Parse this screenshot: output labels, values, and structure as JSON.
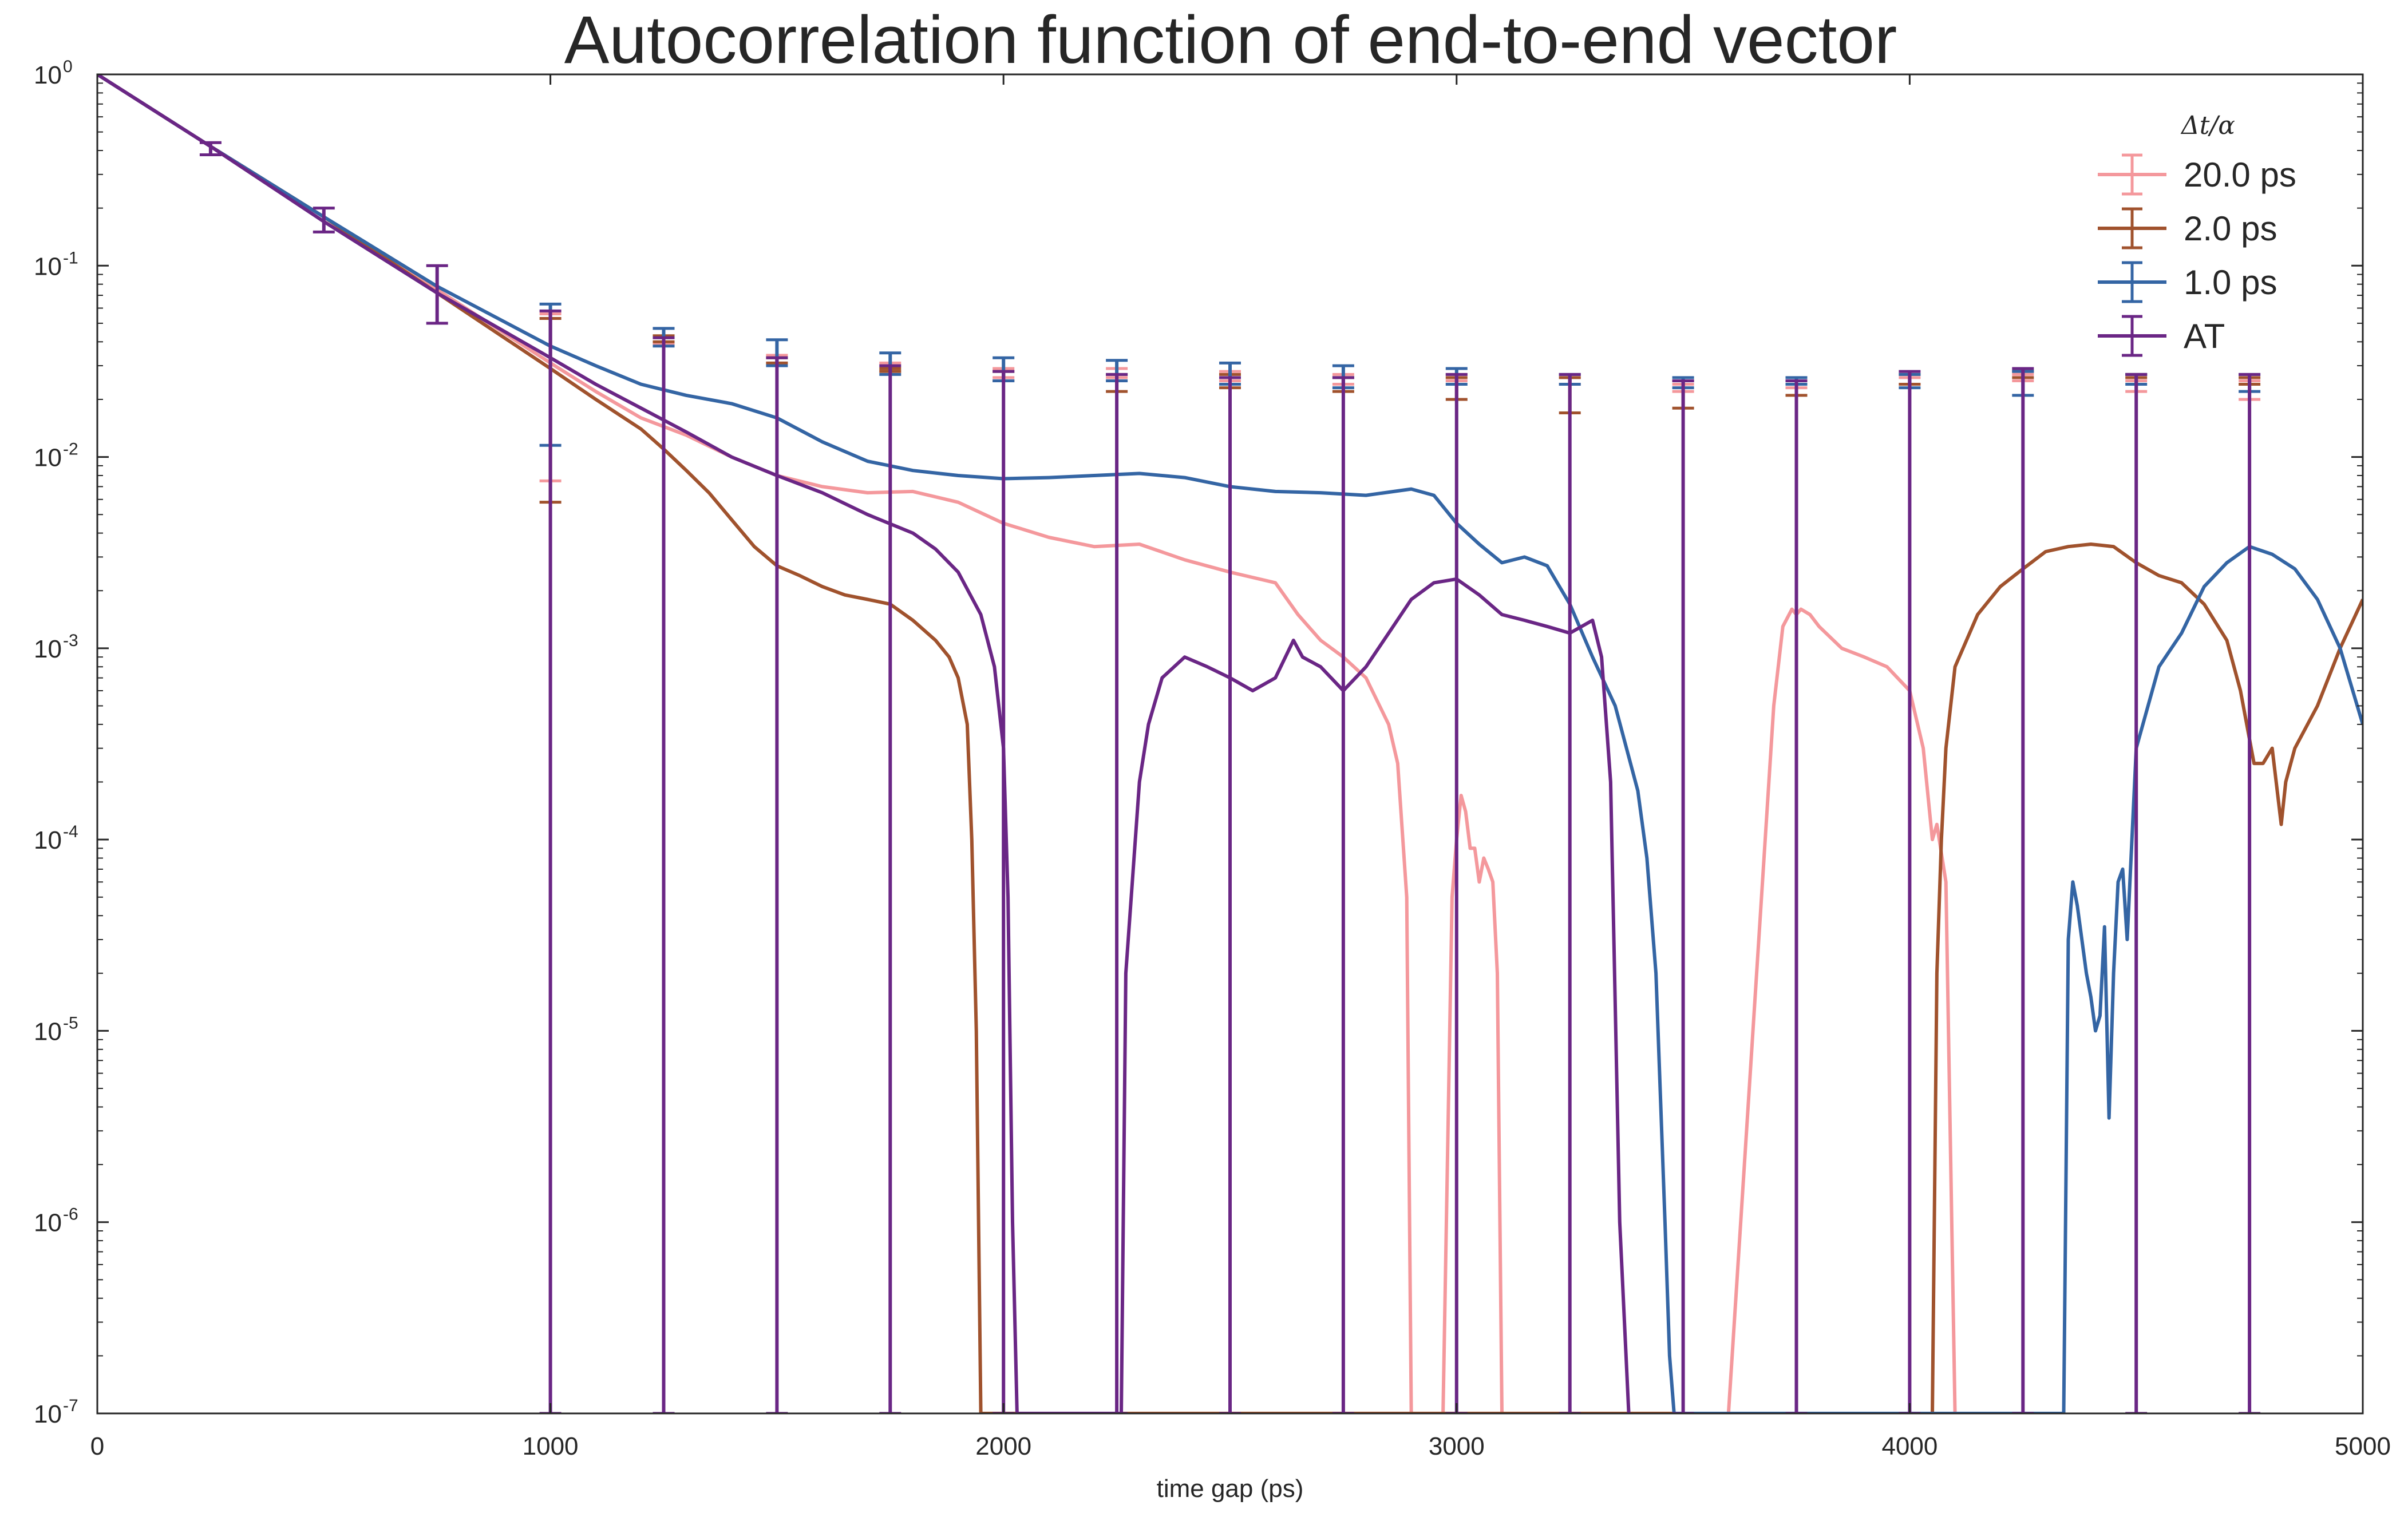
{
  "chart_data": {
    "type": "line",
    "title": "Autocorrelation function of end-to-end vector",
    "xlabel": "time gap (ps)",
    "ylabel": "",
    "xlim": [
      0,
      5000
    ],
    "ylim": [
      1e-07,
      1
    ],
    "yscale": "log",
    "grid": false,
    "legend_position": "top-right",
    "legend_title": "Δt/α",
    "x_ticks": [
      0,
      1000,
      2000,
      3000,
      4000,
      5000
    ],
    "x_tick_labels": [
      "0",
      "1000",
      "2000",
      "3000",
      "4000",
      "5000"
    ],
    "y_ticks": [
      {
        "value": 1,
        "base": "10",
        "exp": "0"
      },
      {
        "value": 0.1,
        "base": "10",
        "exp": "-1"
      },
      {
        "value": 0.01,
        "base": "10",
        "exp": "-2"
      },
      {
        "value": 0.001,
        "base": "10",
        "exp": "-3"
      },
      {
        "value": 0.0001,
        "base": "10",
        "exp": "-4"
      },
      {
        "value": 1e-05,
        "base": "10",
        "exp": "-5"
      },
      {
        "value": 1e-06,
        "base": "10",
        "exp": "-6"
      },
      {
        "value": 1e-07,
        "base": "10",
        "exp": "-7"
      }
    ],
    "series": [
      {
        "name": "20.0 ps",
        "color": "#f4989c",
        "x": [
          0,
          250,
          500,
          750,
          1000,
          1100,
          1200,
          1300,
          1400,
          1500,
          1600,
          1700,
          1800,
          1900,
          2000,
          2100,
          2200,
          2300,
          2400,
          2500,
          2600,
          2650,
          2700,
          2750,
          2800,
          2850,
          2870,
          2890,
          2900,
          2970,
          2990,
          3000,
          3010,
          3020,
          3030,
          3040,
          3050,
          3060,
          3070,
          3080,
          3090,
          3100,
          3110,
          3600,
          3700,
          3720,
          3740,
          3750,
          3760,
          3780,
          3800,
          3850,
          3900,
          3950,
          4000,
          4030,
          4050,
          4060,
          4080,
          4100,
          4110,
          4120,
          4130
        ],
        "y": [
          1,
          0.42,
          0.18,
          0.075,
          0.031,
          0.022,
          0.016,
          0.013,
          0.01,
          0.008,
          0.007,
          0.0065,
          0.0066,
          0.0058,
          0.0045,
          0.0038,
          0.0034,
          0.0035,
          0.0029,
          0.0025,
          0.0022,
          0.0015,
          0.0011,
          0.0009,
          0.0007,
          0.0004,
          0.00025,
          5e-05,
          1e-07,
          1e-07,
          5e-05,
          0.0001,
          0.00017,
          0.00014,
          9e-05,
          9e-05,
          6e-05,
          8e-05,
          7e-05,
          6e-05,
          2e-05,
          1e-07,
          1e-07,
          1e-07,
          0.0005,
          0.0013,
          0.0016,
          0.0015,
          0.0016,
          0.0015,
          0.0013,
          0.001,
          0.0009,
          0.0008,
          0.0006,
          0.0003,
          0.0001,
          0.00012,
          6e-05,
          1e-07,
          1e-07,
          1e-07,
          1e-07
        ],
        "error_x": [
          1000,
          1250,
          1500,
          1750,
          2000,
          2250,
          2500,
          2750,
          3000,
          3250,
          3500,
          3750,
          4000,
          4250,
          4500,
          4750
        ],
        "error_lower": [
          0.0075,
          0.039,
          0.031,
          0.028,
          0.026,
          0.026,
          0.025,
          0.024,
          0.025,
          0.024,
          0.022,
          0.023,
          0.024,
          0.025,
          0.022,
          0.02
        ],
        "error_upper": [
          0.056,
          0.042,
          0.034,
          0.031,
          0.029,
          0.029,
          0.028,
          0.027,
          0.027,
          0.026,
          0.024,
          0.025,
          0.026,
          0.027,
          0.025,
          0.025
        ]
      },
      {
        "name": "2.0 ps",
        "color": "#a0522d",
        "x": [
          0,
          250,
          500,
          750,
          1000,
          1100,
          1200,
          1250,
          1300,
          1350,
          1400,
          1450,
          1500,
          1550,
          1600,
          1650,
          1700,
          1750,
          1800,
          1850,
          1880,
          1900,
          1920,
          1930,
          1940,
          1950,
          4050,
          4060,
          4070,
          4080,
          4100,
          4150,
          4200,
          4250,
          4300,
          4350,
          4400,
          4450,
          4500,
          4550,
          4600,
          4650,
          4700,
          4730,
          4760,
          4780,
          4800,
          4820,
          4830,
          4850,
          4900,
          4950,
          5000
        ],
        "y": [
          1,
          0.42,
          0.18,
          0.072,
          0.029,
          0.02,
          0.014,
          0.011,
          0.0085,
          0.0065,
          0.0047,
          0.0034,
          0.0027,
          0.0024,
          0.0021,
          0.0019,
          0.0018,
          0.0017,
          0.0014,
          0.0011,
          0.0009,
          0.0007,
          0.0004,
          0.0001,
          1e-05,
          1e-07,
          1e-07,
          2e-05,
          0.0001,
          0.0003,
          0.0008,
          0.0015,
          0.0021,
          0.0026,
          0.0032,
          0.0034,
          0.0035,
          0.0034,
          0.0028,
          0.0024,
          0.0022,
          0.0017,
          0.0011,
          0.0006,
          0.00025,
          0.00025,
          0.0003,
          0.00012,
          0.0002,
          0.0003,
          0.0005,
          0.001,
          0.0018
        ],
        "error_x": [
          1000,
          1250,
          1500,
          1750,
          2000,
          2250,
          2500,
          2750,
          3000,
          3250,
          3500,
          3750,
          4000,
          4250,
          4500,
          4750
        ],
        "error_lower": [
          0.0058,
          0.04,
          0.031,
          0.028,
          0.025,
          0.022,
          0.023,
          0.022,
          0.02,
          0.017,
          0.018,
          0.021,
          0.024,
          0.026,
          0.026,
          0.024
        ],
        "error_upper": [
          0.053,
          0.043,
          0.033,
          0.029,
          0.028,
          0.027,
          0.027,
          0.026,
          0.026,
          0.026,
          0.025,
          0.025,
          0.027,
          0.028,
          0.027,
          0.026
        ]
      },
      {
        "name": "1.0 ps",
        "color": "#3465a4",
        "x": [
          0,
          250,
          500,
          750,
          1000,
          1100,
          1200,
          1300,
          1400,
          1500,
          1600,
          1700,
          1800,
          1900,
          2000,
          2100,
          2200,
          2300,
          2400,
          2500,
          2600,
          2700,
          2800,
          2900,
          2950,
          3000,
          3050,
          3100,
          3150,
          3200,
          3250,
          3300,
          3350,
          3400,
          3420,
          3440,
          3460,
          3470,
          3480,
          4340,
          4350,
          4360,
          4370,
          4380,
          4390,
          4400,
          4410,
          4420,
          4430,
          4440,
          4450,
          4460,
          4470,
          4480,
          4500,
          4550,
          4600,
          4650,
          4700,
          4750,
          4800,
          4850,
          4900,
          4950,
          5000
        ],
        "y": [
          1,
          0.42,
          0.18,
          0.078,
          0.038,
          0.03,
          0.024,
          0.021,
          0.019,
          0.016,
          0.012,
          0.0095,
          0.0085,
          0.008,
          0.0077,
          0.0078,
          0.008,
          0.0082,
          0.0078,
          0.007,
          0.0066,
          0.0065,
          0.0063,
          0.0068,
          0.0063,
          0.0045,
          0.0035,
          0.0028,
          0.003,
          0.0027,
          0.0017,
          0.0009,
          0.0005,
          0.00018,
          8e-05,
          2e-05,
          1e-06,
          2e-07,
          1e-07,
          1e-07,
          3e-05,
          6e-05,
          4.5e-05,
          3e-05,
          2e-05,
          1.5e-05,
          1e-05,
          1.2e-05,
          3.5e-05,
          3.5e-06,
          2e-05,
          6e-05,
          7e-05,
          3e-05,
          0.0003,
          0.0008,
          0.0012,
          0.0021,
          0.0028,
          0.0034,
          0.0031,
          0.0026,
          0.0018,
          0.001,
          0.0004
        ],
        "error_x": [
          1000,
          1250,
          1500,
          1750,
          2000,
          2250,
          2500,
          2750,
          3000,
          3250,
          3500,
          3750,
          4000,
          4250,
          4500,
          4750
        ],
        "error_lower": [
          0.0115,
          0.038,
          0.03,
          0.027,
          0.025,
          0.025,
          0.024,
          0.023,
          0.024,
          0.024,
          0.023,
          0.024,
          0.023,
          0.021,
          0.024,
          0.022
        ],
        "error_upper": [
          0.063,
          0.047,
          0.041,
          0.035,
          0.033,
          0.032,
          0.031,
          0.03,
          0.029,
          0.027,
          0.026,
          0.026,
          0.027,
          0.028,
          0.027,
          0.027
        ]
      },
      {
        "name": "AT",
        "color": "#6a2685",
        "x": [
          0,
          250,
          500,
          750,
          1000,
          1100,
          1200,
          1300,
          1400,
          1500,
          1600,
          1700,
          1800,
          1850,
          1900,
          1950,
          1980,
          2000,
          2010,
          2020,
          2030,
          2260,
          2270,
          2300,
          2320,
          2350,
          2400,
          2450,
          2500,
          2550,
          2600,
          2640,
          2660,
          2700,
          2750,
          2800,
          2850,
          2900,
          2950,
          3000,
          3050,
          3100,
          3150,
          3200,
          3250,
          3300,
          3320,
          3340,
          3360,
          3380
        ],
        "y": [
          1,
          0.42,
          0.17,
          0.072,
          0.033,
          0.024,
          0.018,
          0.0135,
          0.01,
          0.008,
          0.0065,
          0.005,
          0.004,
          0.0033,
          0.0025,
          0.0015,
          0.0008,
          0.0003,
          5e-05,
          1e-06,
          1e-07,
          1e-07,
          2e-05,
          0.0002,
          0.0004,
          0.0007,
          0.0009,
          0.0008,
          0.0007,
          0.0006,
          0.0007,
          0.0011,
          0.0009,
          0.0008,
          0.0006,
          0.0008,
          0.0012,
          0.0018,
          0.0022,
          0.0023,
          0.0019,
          0.0015,
          0.0014,
          0.0013,
          0.0012,
          0.0014,
          0.0009,
          0.0002,
          1e-06,
          1e-07
        ],
        "error_x": [
          250,
          500,
          750,
          1000,
          1250,
          1500,
          1750,
          2000,
          2250,
          2500,
          2750,
          3000,
          3250,
          3500,
          3750,
          4000,
          4250,
          4500,
          4750
        ],
        "error_lower": [
          0.38,
          0.15,
          0.05,
          1e-07,
          1e-07,
          1e-07,
          1e-07,
          1e-07,
          1e-07,
          1e-07,
          1e-07,
          1e-07,
          1e-07,
          1e-07,
          1e-07,
          1e-07,
          1e-07,
          1e-07,
          1e-07
        ],
        "error_upper": [
          0.44,
          0.2,
          0.1,
          0.058,
          0.042,
          0.033,
          0.03,
          0.028,
          0.027,
          0.026,
          0.026,
          0.027,
          0.027,
          0.025,
          0.025,
          0.028,
          0.029,
          0.027,
          0.027
        ]
      }
    ]
  }
}
